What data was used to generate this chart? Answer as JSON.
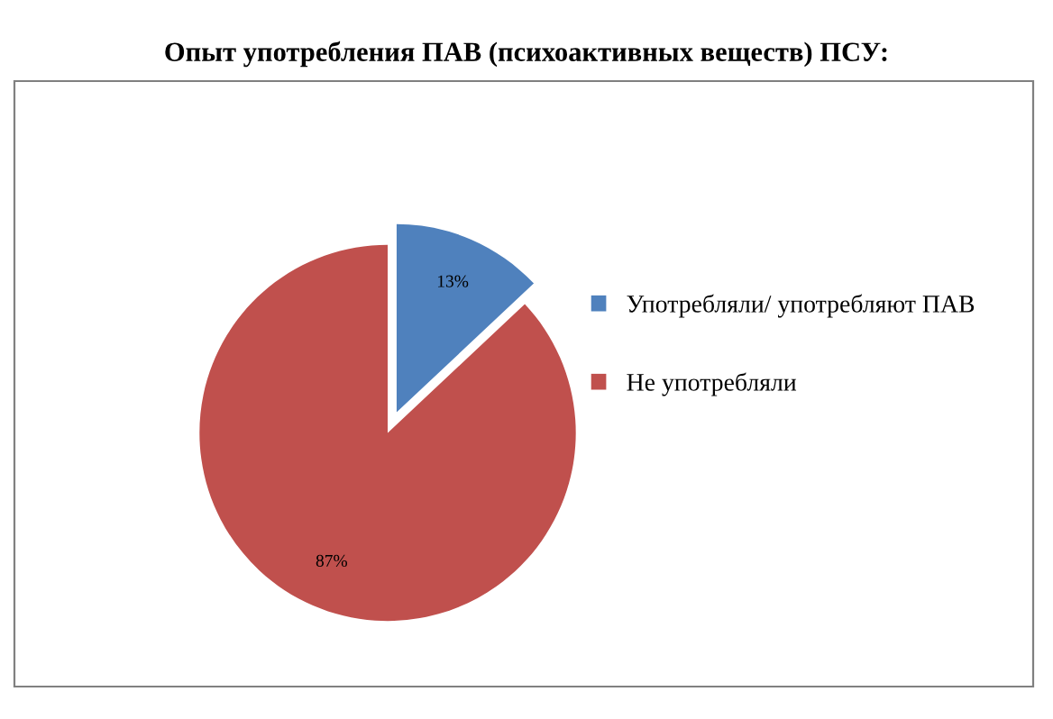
{
  "chart_data": {
    "type": "pie",
    "title": "Опыт употребления ПАВ (психоактивных веществ) ПСУ:",
    "categories": [
      "Употребляли/ употребляют ПАВ",
      "Не употребляли"
    ],
    "values": [
      13,
      87
    ],
    "colors": [
      "#4f81bd",
      "#c0504d"
    ],
    "value_labels": [
      "13%",
      "87%"
    ],
    "legend": "right"
  }
}
